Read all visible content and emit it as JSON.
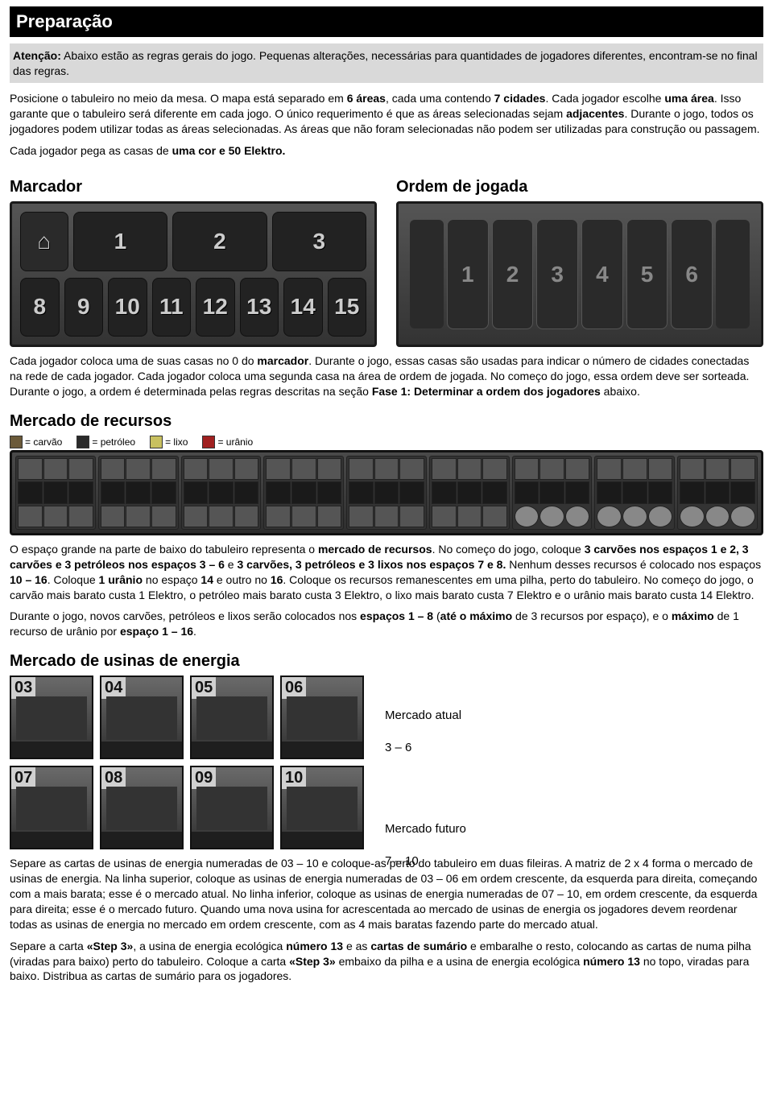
{
  "title": "Preparação",
  "alert_label": "Atenção:",
  "alert_text": " Abaixo estão as regras gerais do jogo. Pequenas alterações, necessárias para quantidades de jogadores diferentes, encontram-se no final das regras.",
  "p1a": "Posicione o tabuleiro no meio da mesa. O mapa está separado em ",
  "p1b": "6 áreas",
  "p1c": ", cada uma contendo ",
  "p1d": "7 cidades",
  "p1e": ". Cada jogador escolhe ",
  "p1f": "uma área",
  "p1g": ". Isso garante que o tabuleiro será diferente em cada jogo. O único requerimento é que as áreas selecionadas sejam ",
  "p1h": "adjacentes",
  "p1i": ". Durante o jogo, todos os jogadores podem utilizar todas as áreas selecionadas. As áreas que não foram selecionadas não podem ser utilizadas para construção ou passagem.",
  "p2a": "Cada jogador pega as casas de ",
  "p2b": "uma cor e 50 Elektro.",
  "h_marcador": "Marcador",
  "h_ordem": "Ordem de jogada",
  "marcador_top": [
    "",
    "1",
    "2",
    "3"
  ],
  "marcador_bot": [
    "8",
    "9",
    "10",
    "11",
    "12",
    "13",
    "14",
    "15"
  ],
  "ordem_slots": [
    "1",
    "2",
    "3",
    "4",
    "5",
    "6"
  ],
  "p3a": "Cada jogador coloca uma de suas casas no 0 do ",
  "p3b": "marcador",
  "p3c": ". Durante o jogo, essas casas são usadas para indicar o número de cidades conectadas na rede de cada jogador. Cada jogador coloca uma segunda casa na área de ordem de jogada. No começo do jogo, essa ordem deve ser sorteada. Durante o jogo, a ordem é determinada pelas regras descritas na seção ",
  "p3d": "Fase 1: Determinar a ordem dos jogadores",
  "p3e": " abaixo.",
  "h_mercado": "Mercado de recursos",
  "legend": {
    "carvao": "= carvão",
    "petroleo": "= petróleo",
    "lixo": "= lixo",
    "uranio": "= urânio",
    "c_carvao": "#6b5a3a",
    "c_petroleo": "#2a2a2a",
    "c_lixo": "#c8c060",
    "c_uranio": "#a02020"
  },
  "p4a": "O espaço grande na parte de baixo do tabuleiro representa o ",
  "p4b": "mercado de recursos",
  "p4c": ". No começo do jogo, coloque ",
  "p4d": "3 carvões nos espaços 1 e 2, 3 carvões e 3 petróleos nos espaços 3 – 6",
  "p4e": " e ",
  "p4f": "3 carvões, 3 petróleos e 3 lixos nos espaços 7 e 8.",
  "p4g": " Nenhum desses recursos é colocado nos espaços ",
  "p4h": "10 – 16",
  "p4i": ". Coloque ",
  "p4j": "1 urânio",
  "p4k": " no espaço ",
  "p4l": "14",
  "p4m": " e outro no ",
  "p4n": "16",
  "p4o": ". Coloque os recursos remanescentes em uma pilha, perto do tabuleiro. No começo do jogo, o carvão mais barato custa 1 Elektro, o petróleo mais barato custa 3 Elektro, o lixo mais barato custa 7 Elektro e o urânio mais barato custa 14 Elektro.",
  "p5a": "Durante o jogo, novos carvões, petróleos e lixos serão colocados nos ",
  "p5b": "espaços 1 – 8",
  "p5c": " (",
  "p5d": "até o máximo",
  "p5e": " de 3 recursos por espaço), e o ",
  "p5f": "máximo",
  "p5g": " de 1 recurso de urânio por ",
  "p5h": "espaço 1 – 16",
  "p5i": ".",
  "h_usinas": "Mercado de usinas de energia",
  "plants_top": [
    "03",
    "04",
    "05",
    "06"
  ],
  "plants_bot": [
    "07",
    "08",
    "09",
    "10"
  ],
  "lbl_atual_t": "Mercado atual",
  "lbl_atual_r": "3 – 6",
  "lbl_futuro_t": "Mercado futuro",
  "lbl_futuro_r": "7 – 10",
  "p6": "Separe as cartas de usinas de energia numeradas de 03 – 10 e coloque-as perto do tabuleiro em duas fileiras. A matriz de 2 x 4 forma o mercado de usinas de energia. Na linha superior, coloque as usinas de energia numeradas de 03 – 06 em ordem crescente, da esquerda para direita, começando com a mais barata; esse é o mercado atual. No linha inferior, coloque as usinas de energia numeradas de 07 – 10, em ordem crescente, da esquerda para direita; esse é o mercado futuro. Quando uma nova usina for acrescentada ao mercado de usinas de energia os jogadores devem reordenar todas as usinas de energia no mercado em ordem crescente, com as 4 mais baratas fazendo parte do mercado atual.",
  "p7a": "Separe a carta ",
  "p7b": "«Step 3»",
  "p7c": ", a usina de energia ecológica ",
  "p7d": "número 13",
  "p7e": " e as ",
  "p7f": "cartas de sumário",
  "p7g": " e embaralhe o resto, colocando as cartas de numa pilha (viradas para baixo) perto do tabuleiro. Coloque a carta ",
  "p7h": "«Step 3»",
  "p7i": " embaixo da pilha e a usina de energia ecológica ",
  "p7j": "número 13",
  "p7k": " no topo, viradas para baixo. Distribua as cartas de sumário para os jogadores."
}
